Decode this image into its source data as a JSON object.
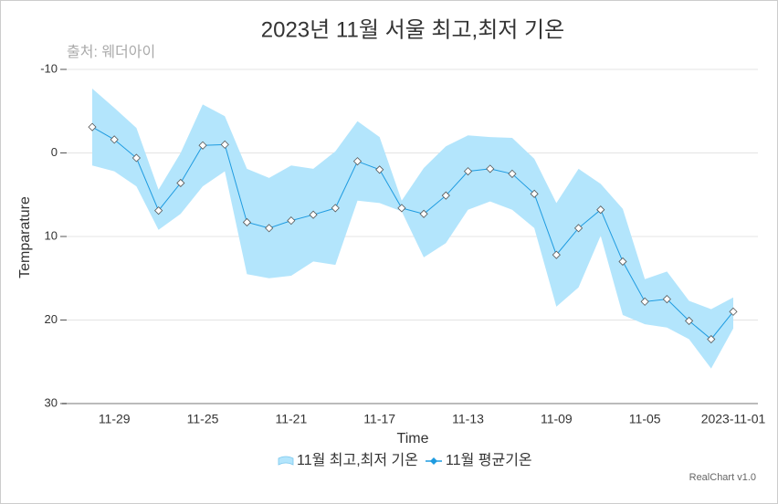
{
  "chart_data": {
    "type": "line-range",
    "title": "2023년 11월 서울 최고,최저 기온",
    "subtitle": "출처: 웨더아이",
    "xlabel": "Time",
    "ylabel": "Temparature",
    "credit": "RealChart v1.0",
    "x": [
      "2023-11-30",
      "2023-11-29",
      "2023-11-28",
      "2023-11-27",
      "2023-11-26",
      "2023-11-25",
      "2023-11-24",
      "2023-11-23",
      "2023-11-22",
      "2023-11-21",
      "2023-11-20",
      "2023-11-19",
      "2023-11-18",
      "2023-11-17",
      "2023-11-16",
      "2023-11-15",
      "2023-11-14",
      "2023-11-13",
      "2023-11-12",
      "2023-11-11",
      "2023-11-10",
      "2023-11-09",
      "2023-11-08",
      "2023-11-07",
      "2023-11-06",
      "2023-11-05",
      "2023-11-04",
      "2023-11-03",
      "2023-11-02",
      "2023-11-01"
    ],
    "xlim": [
      "2023-11-30",
      "2023-11-01"
    ],
    "xticks": [
      {
        "value": "2023-11-29",
        "label": "11-29"
      },
      {
        "value": "2023-11-25",
        "label": "11-25"
      },
      {
        "value": "2023-11-21",
        "label": "11-21"
      },
      {
        "value": "2023-11-17",
        "label": "11-17"
      },
      {
        "value": "2023-11-13",
        "label": "11-13"
      },
      {
        "value": "2023-11-09",
        "label": "11-09"
      },
      {
        "value": "2023-11-05",
        "label": "11-05"
      },
      "2023-11-01"
    ],
    "ylim": [
      -10,
      30
    ],
    "y_reversed": true,
    "yticks": [
      -10,
      0,
      10,
      20,
      30
    ],
    "grid": true,
    "legend": "bottom",
    "range": {
      "name": "11월 최고,최저 기온",
      "color": "#b3e5fc",
      "low": [
        -7.7,
        -5.4,
        -3.0,
        4.4,
        0,
        -5.8,
        -4.4,
        1.9,
        3.0,
        1.5,
        1.9,
        -0.2,
        -3.8,
        -1.9,
        5.7,
        1.8,
        -0.8,
        -2.1,
        -1.9,
        -1.8,
        0.7,
        6.0,
        1.9,
        3.7,
        6.7,
        15.1,
        14.2,
        17.7,
        18.7,
        17.3
      ],
      "high": [
        1.5,
        2.2,
        4.0,
        9.2,
        7.3,
        4.0,
        2.2,
        14.5,
        15.0,
        14.7,
        13.0,
        13.4,
        5.7,
        6.0,
        7.0,
        12.5,
        10.8,
        6.8,
        5.8,
        6.8,
        9.0,
        18.4,
        16.1,
        9.9,
        19.4,
        20.5,
        20.9,
        22.3,
        25.8,
        21.0
      ]
    },
    "series": [
      {
        "name": "11월 평균기온",
        "color": "#1e9be0",
        "values": [
          -3.1,
          -1.6,
          0.6,
          6.9,
          3.6,
          -0.9,
          -1.0,
          8.3,
          9.0,
          8.1,
          7.4,
          6.6,
          1.0,
          2.0,
          6.6,
          7.3,
          5.1,
          2.2,
          1.9,
          2.5,
          4.9,
          12.2,
          9.0,
          6.8,
          13.0,
          17.8,
          17.5,
          20.1,
          22.3,
          19.0
        ]
      }
    ]
  }
}
